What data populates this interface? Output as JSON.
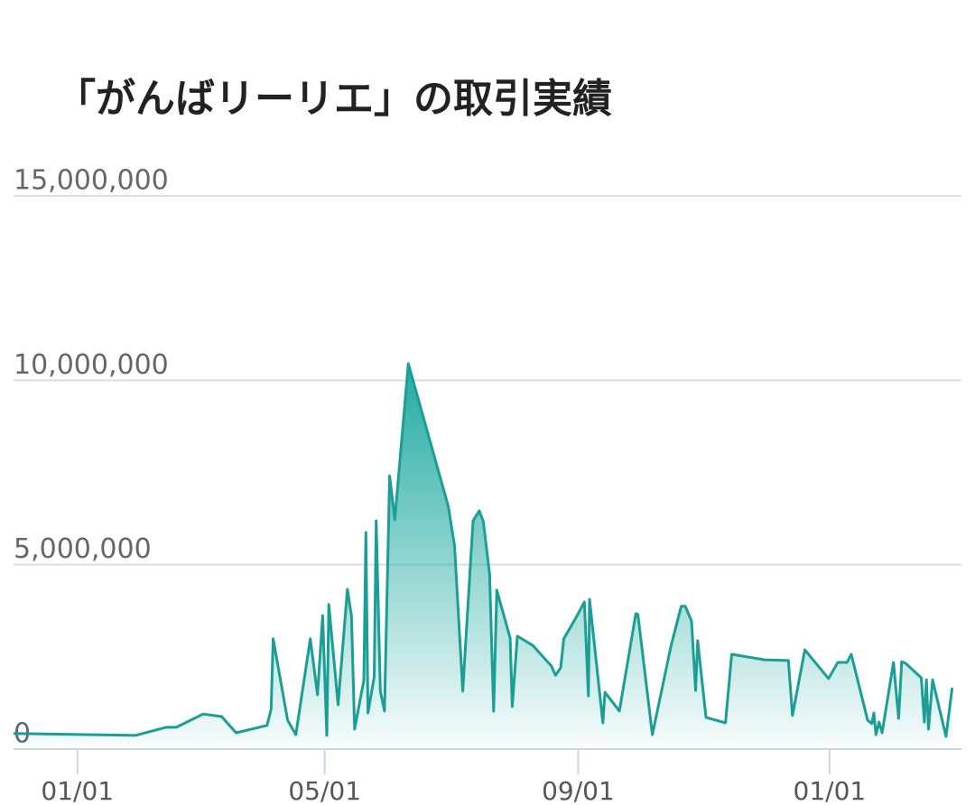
{
  "chart_data": {
    "type": "area",
    "title": "「がんばリーリエ」の取引実績",
    "color": "#1a9e96",
    "xlim": [
      -31,
      429
    ],
    "xticks": [
      {
        "value": 0,
        "label": "01/01"
      },
      {
        "value": 120,
        "label": "05/01"
      },
      {
        "value": 243,
        "label": "09/01"
      },
      {
        "value": 365,
        "label": "01/01"
      }
    ],
    "ylim": [
      0,
      15000000
    ],
    "yticks": [
      0,
      {
        "value": 5000000,
        "label": "5,000,000"
      },
      {
        "value": 10000000,
        "label": "10,000,000"
      },
      {
        "value": 15000000,
        "label": "15,000,000"
      }
    ],
    "grid": true,
    "x": [
      -31,
      28,
      43,
      48,
      61,
      70,
      77,
      92,
      94,
      95,
      102,
      106,
      113,
      116.5,
      119,
      121,
      122,
      126.5,
      131,
      133,
      134.5,
      139,
      140,
      141,
      144,
      145,
      147,
      149,
      151.5,
      154,
      160.6,
      180,
      183,
      187,
      192,
      195,
      197,
      200,
      202,
      203.5,
      210,
      211,
      213.5,
      221,
      230,
      232,
      234.5,
      236,
      242,
      246,
      248,
      248.5,
      255,
      256,
      263,
      271,
      272,
      279,
      288,
      293,
      295,
      298,
      300,
      301,
      305,
      314.5,
      317.5,
      333.5,
      345,
      347,
      353,
      364.5,
      369,
      373.5,
      375.5,
      383.5,
      385.5,
      386.5,
      387.5,
      389,
      390.5,
      396,
      398.5,
      400,
      402,
      409.5,
      411,
      412,
      413,
      415,
      421.5,
      424.5
    ],
    "values": [
      420000,
      370000,
      590000,
      590000,
      950000,
      880000,
      440000,
      640000,
      1080000,
      2990000,
      780000,
      390000,
      2990000,
      1470000,
      3620000,
      370000,
      3920000,
      1200000,
      4330000,
      3620000,
      540000,
      1860000,
      5870000,
      980000,
      1960000,
      6190000,
      1570000,
      1030000,
      7410000,
      6220000,
      10450000,
      6580000,
      5510000,
      1570000,
      6190000,
      6460000,
      6170000,
      4750000,
      1030000,
      4310000,
      3010000,
      1150000,
      3060000,
      2810000,
      2250000,
      2000000,
      2200000,
      2990000,
      3570000,
      3990000,
      1440000,
      4060000,
      710000,
      1540000,
      1030000,
      3670000,
      3650000,
      390000,
      2790000,
      3870000,
      3870000,
      3470000,
      1590000,
      2940000,
      860000,
      710000,
      2570000,
      2420000,
      2400000,
      910000,
      2690000,
      1910000,
      2350000,
      2350000,
      2570000,
      780000,
      690000,
      980000,
      390000,
      730000,
      440000,
      2350000,
      830000,
      2370000,
      2320000,
      1930000,
      730000,
      1880000,
      540000,
      1880000,
      340000,
      1660000
    ]
  }
}
